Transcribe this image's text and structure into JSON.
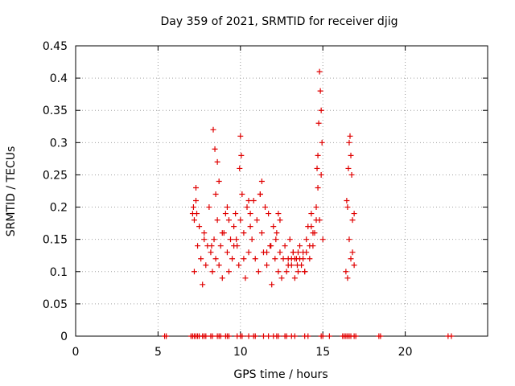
{
  "chart_data": {
    "type": "scatter",
    "title": "Day 359 of 2021, SRMTID for receiver djig",
    "xlabel": "GPS time / hours",
    "ylabel": "SRMTID / TECUs",
    "xlim": [
      0,
      25
    ],
    "ylim": [
      0,
      0.45
    ],
    "xticks": [
      "0",
      "5",
      "10",
      "15",
      "20"
    ],
    "yticks": [
      "0",
      "0.05",
      "0.1",
      "0.15",
      "0.2",
      "0.25",
      "0.3",
      "0.35",
      "0.4",
      "0.45"
    ],
    "grid": true,
    "legend": "none",
    "marker": "plus",
    "color": "#e00000",
    "series": [
      {
        "x": [
          7.1,
          7.2,
          7.3,
          7.4,
          7.5,
          7.6,
          7.7,
          7.8,
          7.9,
          8.0,
          8.1,
          8.2,
          8.3,
          8.4,
          8.5,
          8.6,
          8.7,
          8.8,
          8.9,
          9.0,
          9.1,
          9.2,
          9.3,
          9.4,
          9.5,
          9.6,
          9.7,
          9.8,
          9.9,
          10.0,
          10.1,
          10.2,
          10.3,
          10.4,
          10.5,
          10.6,
          10.7,
          10.8,
          10.9,
          11.0,
          11.1,
          11.2,
          11.3,
          11.4,
          11.5,
          11.6,
          11.7,
          11.8,
          11.9,
          12.0,
          12.1,
          12.2,
          12.3,
          12.4,
          12.5,
          12.6,
          12.7,
          12.8,
          12.9,
          13.0,
          13.1,
          13.2,
          13.3,
          13.4,
          13.5,
          13.6,
          13.7,
          13.8,
          13.9,
          14.0,
          14.1,
          14.2,
          14.3,
          14.4,
          14.5,
          14.6,
          14.7,
          14.8,
          14.9,
          15.0,
          16.4,
          16.5,
          16.6,
          16.7,
          16.8,
          16.9,
          8.35,
          8.45,
          8.6,
          8.7,
          8.5,
          10.0,
          10.05,
          9.95,
          11.2,
          11.3,
          14.8,
          14.85,
          14.9,
          14.75,
          14.95,
          14.7,
          14.65,
          16.65,
          16.7,
          16.6,
          16.75,
          16.55,
          7.3,
          7.35,
          7.2,
          9.2,
          9.3,
          10.5,
          10.6,
          12.3,
          12.4,
          13.2,
          13.3,
          13.5,
          13.6,
          13.8,
          14.0,
          14.2,
          16.5,
          16.8,
          7.15,
          7.8,
          8.9,
          9.6,
          10.2,
          11.6,
          12.9,
          13.1,
          13.9,
          14.4,
          14.6,
          16.45,
          16.9,
          8.25,
          9.75,
          11.85,
          12.15,
          13.45,
          14.3
        ],
        "y": [
          0.19,
          0.1,
          0.23,
          0.14,
          0.17,
          0.12,
          0.08,
          0.16,
          0.11,
          0.14,
          0.2,
          0.13,
          0.1,
          0.15,
          0.12,
          0.18,
          0.11,
          0.14,
          0.09,
          0.16,
          0.19,
          0.13,
          0.1,
          0.15,
          0.12,
          0.17,
          0.19,
          0.14,
          0.11,
          0.18,
          0.22,
          0.16,
          0.09,
          0.2,
          0.13,
          0.17,
          0.15,
          0.21,
          0.12,
          0.18,
          0.1,
          0.22,
          0.16,
          0.13,
          0.2,
          0.11,
          0.19,
          0.14,
          0.08,
          0.17,
          0.12,
          0.16,
          0.1,
          0.13,
          0.09,
          0.12,
          0.14,
          0.1,
          0.12,
          0.15,
          0.11,
          0.13,
          0.09,
          0.12,
          0.1,
          0.14,
          0.11,
          0.13,
          0.1,
          0.15,
          0.17,
          0.12,
          0.19,
          0.14,
          0.16,
          0.2,
          0.23,
          0.18,
          0.25,
          0.15,
          0.1,
          0.2,
          0.15,
          0.12,
          0.18,
          0.11,
          0.32,
          0.29,
          0.27,
          0.24,
          0.22,
          0.31,
          0.28,
          0.26,
          0.22,
          0.24,
          0.41,
          0.38,
          0.35,
          0.33,
          0.3,
          0.28,
          0.26,
          0.31,
          0.28,
          0.3,
          0.25,
          0.26,
          0.21,
          0.19,
          0.18,
          0.2,
          0.18,
          0.21,
          0.19,
          0.19,
          0.18,
          0.13,
          0.12,
          0.13,
          0.12,
          0.12,
          0.13,
          0.14,
          0.09,
          0.13,
          0.2,
          0.15,
          0.16,
          0.14,
          0.12,
          0.13,
          0.11,
          0.12,
          0.1,
          0.16,
          0.18,
          0.21,
          0.19,
          0.14,
          0.15,
          0.14,
          0.15,
          0.11,
          0.17
        ]
      },
      {
        "x": [
          5.4,
          5.5,
          7.0,
          7.1,
          7.2,
          7.3,
          7.4,
          7.5,
          7.7,
          7.8,
          7.9,
          8.2,
          8.3,
          8.6,
          8.7,
          8.8,
          9.1,
          9.2,
          9.3,
          9.8,
          10.0,
          10.1,
          10.5,
          10.8,
          10.9,
          11.4,
          11.7,
          12.0,
          12.2,
          12.3,
          12.7,
          12.8,
          13.1,
          13.3,
          13.9,
          14.1,
          14.9,
          15.0,
          15.4,
          16.2,
          16.3,
          16.4,
          16.5,
          16.6,
          16.7,
          16.9,
          17.0,
          18.4,
          18.5,
          22.6,
          22.8
        ],
        "y": [
          0,
          0,
          0,
          0,
          0,
          0,
          0,
          0,
          0,
          0,
          0,
          0,
          0,
          0,
          0,
          0,
          0,
          0,
          0,
          0,
          0,
          0,
          0,
          0,
          0,
          0,
          0,
          0,
          0,
          0,
          0,
          0,
          0,
          0,
          0,
          0,
          0,
          0,
          0,
          0,
          0,
          0,
          0,
          0,
          0,
          0,
          0,
          0,
          0,
          0,
          0
        ]
      }
    ]
  }
}
